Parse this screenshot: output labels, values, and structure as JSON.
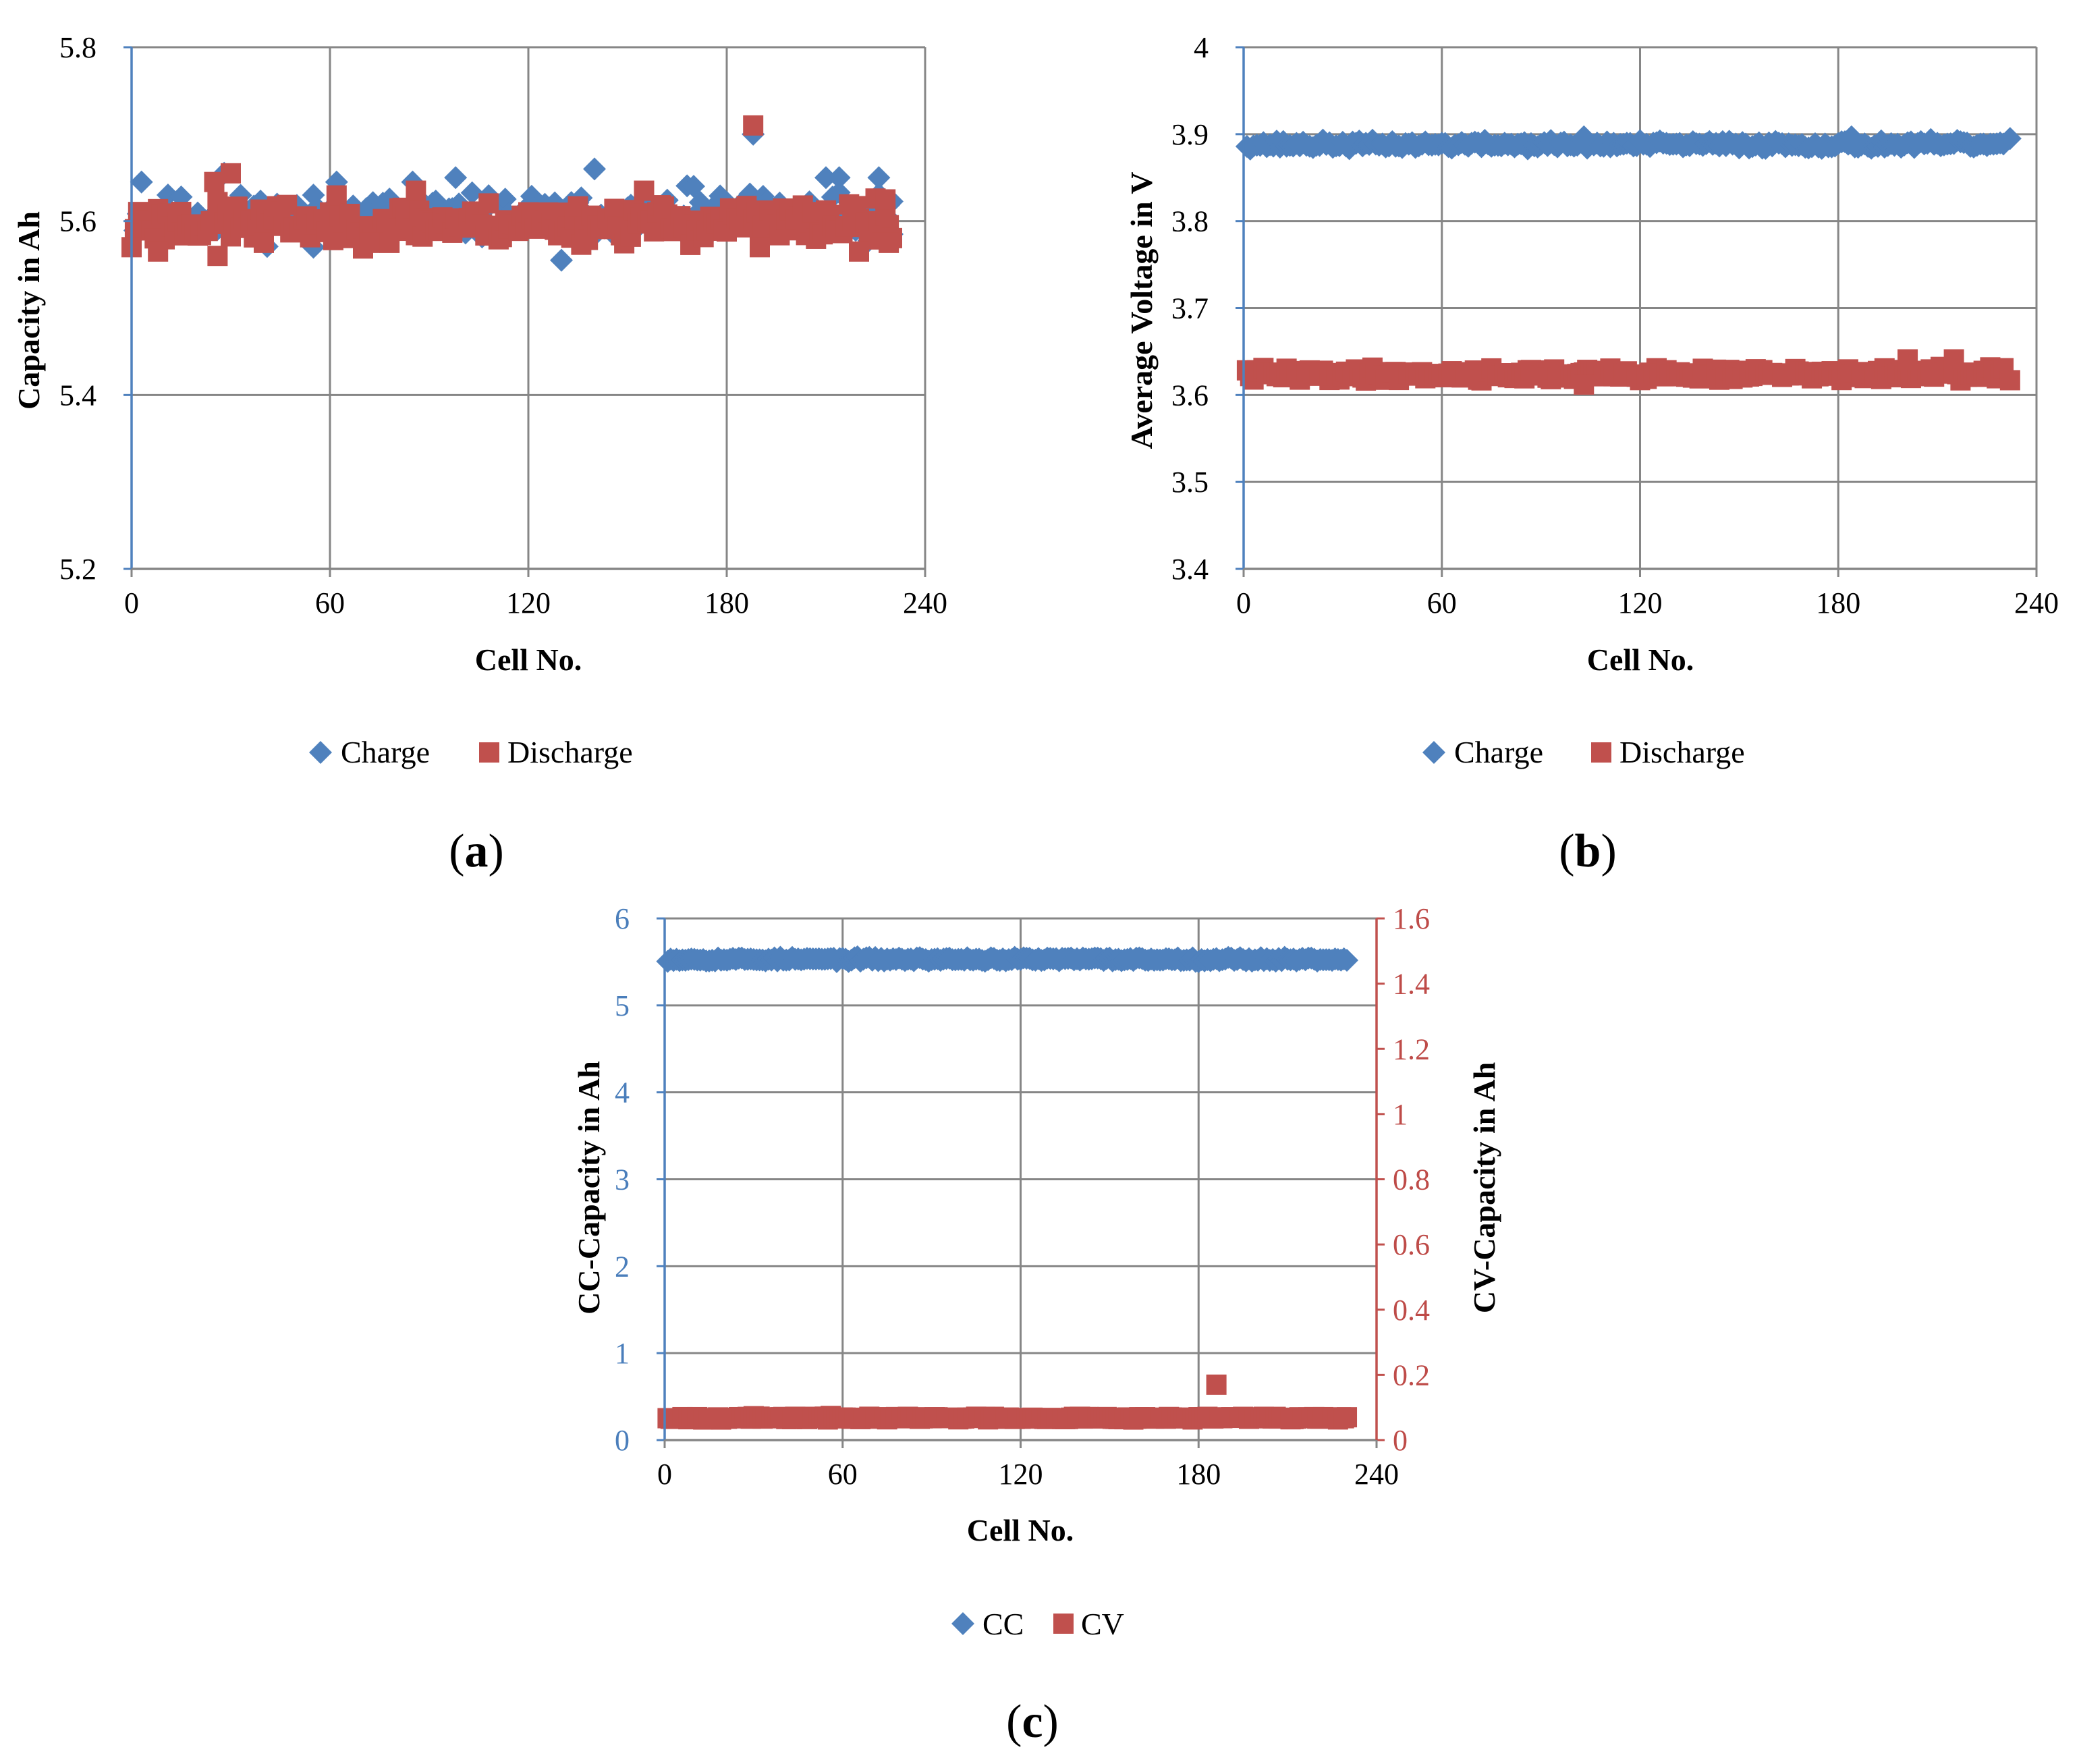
{
  "colors": {
    "blue": "#4f81bd",
    "red": "#c0504d",
    "blue_text": "#4a7ebb",
    "red_text": "#be4b48",
    "grid": "#868686"
  },
  "chart_data": [
    {
      "id": "a",
      "type": "scatter",
      "panel_label": "a",
      "xlabel": "Cell No.",
      "ylabel": "Capacity in Ah",
      "xlim": [
        0,
        240
      ],
      "ylim": [
        5.2,
        5.8
      ],
      "xticks": [
        0,
        60,
        120,
        180,
        240
      ],
      "yticks": [
        5.2,
        5.4,
        5.6,
        5.8
      ],
      "ytick_labels": [
        "5.2",
        "5.4",
        "5.6",
        "5.8"
      ],
      "legend": [
        "Charge",
        "Discharge"
      ],
      "series": [
        {
          "name": "Charge",
          "marker": "diamond",
          "color": "#4f81bd",
          "count": 230,
          "mean": 5.605,
          "spread": 0.022,
          "seed": 11,
          "outliers": [
            [
              3,
              5.645
            ],
            [
              28,
              5.655
            ],
            [
              55,
              5.57
            ],
            [
              62,
              5.645
            ],
            [
              85,
              5.645
            ],
            [
              98,
              5.65
            ],
            [
              130,
              5.555
            ],
            [
              140,
              5.66
            ],
            [
              170,
              5.64
            ],
            [
              188,
              5.7
            ],
            [
              210,
              5.65
            ],
            [
              214,
              5.65
            ],
            [
              226,
              5.65
            ],
            [
              230,
              5.585
            ]
          ]
        },
        {
          "name": "Discharge",
          "marker": "square",
          "color": "#c0504d",
          "count": 230,
          "mean": 5.598,
          "spread": 0.02,
          "seed": 23,
          "outliers": [
            [
              0,
              5.57
            ],
            [
              8,
              5.565
            ],
            [
              25,
              5.645
            ],
            [
              26,
              5.56
            ],
            [
              30,
              5.655
            ],
            [
              40,
              5.575
            ],
            [
              72,
              5.575
            ],
            [
              86,
              5.635
            ],
            [
              155,
              5.635
            ],
            [
              188,
              5.71
            ],
            [
              190,
              5.57
            ],
            [
              220,
              5.565
            ],
            [
              228,
              5.625
            ],
            [
              229,
              5.575
            ]
          ]
        }
      ]
    },
    {
      "id": "b",
      "type": "scatter",
      "panel_label": "b",
      "xlabel": "Cell No.",
      "ylabel": "Average Voltage in V",
      "xlim": [
        0,
        240
      ],
      "ylim": [
        3.4,
        4.0
      ],
      "xticks": [
        0,
        60,
        120,
        180,
        240
      ],
      "yticks": [
        3.4,
        3.5,
        3.6,
        3.7,
        3.8,
        3.9,
        4.0
      ],
      "ytick_labels": [
        "3.4",
        "3.5",
        "3.6",
        "3.7",
        "3.8",
        "3.9",
        "4"
      ],
      "legend": [
        "Charge",
        "Discharge"
      ],
      "series": [
        {
          "name": "Charge",
          "marker": "diamond",
          "color": "#4f81bd",
          "count": 230,
          "mean": 3.888,
          "spread": 0.004,
          "seed": 37,
          "outliers": [
            [
              103,
              3.897
            ],
            [
              184,
              3.897
            ],
            [
              232,
              3.895
            ]
          ]
        },
        {
          "name": "Discharge",
          "marker": "square",
          "color": "#c0504d",
          "count": 230,
          "mean": 3.624,
          "spread": 0.006,
          "seed": 41,
          "outliers": [
            [
              103,
              3.612
            ],
            [
              201,
              3.641
            ],
            [
              215,
              3.641
            ],
            [
              232,
              3.617
            ]
          ]
        }
      ]
    },
    {
      "id": "c",
      "type": "scatter",
      "panel_label": "c",
      "xlabel": "Cell No.",
      "ylabel": "CC-Capacity in Ah",
      "y2label": "CV-Capacity in Ah",
      "xlim": [
        0,
        240
      ],
      "ylim": [
        0,
        6
      ],
      "y2lim": [
        0,
        1.6
      ],
      "xticks": [
        0,
        60,
        120,
        180,
        240
      ],
      "yticks": [
        0,
        1,
        2,
        3,
        4,
        5,
        6
      ],
      "ytick_labels": [
        "0",
        "1",
        "2",
        "3",
        "4",
        "5",
        "6"
      ],
      "y2ticks": [
        0,
        0.2,
        0.4,
        0.6,
        0.8,
        1.0,
        1.2,
        1.4,
        1.6
      ],
      "y2tick_labels": [
        "0",
        "0.2",
        "0.4",
        "0.6",
        "0.8",
        "1",
        "1.2",
        "1.4",
        "1.6"
      ],
      "legend": [
        "CC",
        "CV"
      ],
      "series": [
        {
          "name": "CC",
          "marker": "diamond",
          "color": "#4f81bd",
          "axis": "left",
          "count": 230,
          "mean": 5.53,
          "spread": 0.02,
          "seed": 53,
          "outliers": []
        },
        {
          "name": "CV",
          "marker": "square",
          "color": "#c0504d",
          "axis": "right",
          "count": 230,
          "mean": 0.068,
          "spread": 0.004,
          "seed": 67,
          "outliers": [
            [
              186,
              0.17
            ]
          ]
        }
      ]
    }
  ]
}
